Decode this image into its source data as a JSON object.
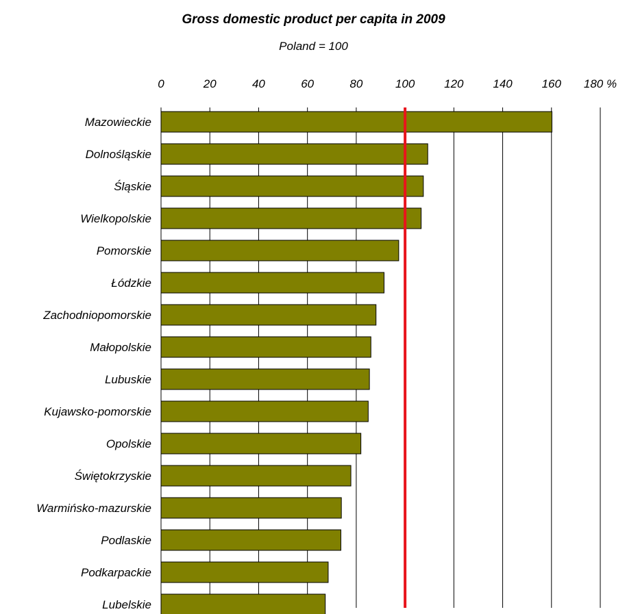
{
  "chart_data": {
    "type": "bar",
    "orientation": "horizontal",
    "title": "Gross domestic product per capita in 2009",
    "subtitle": "Poland = 100",
    "categories": [
      "Mazowieckie",
      "Dolnośląskie",
      "Śląskie",
      "Wielkopolskie",
      "Pomorskie",
      "Łódzkie",
      "Zachodniopomorskie",
      "Małopolskie",
      "Lubuskie",
      "Kujawsko-pomorskie",
      "Opolskie",
      "Świętokrzyskie",
      "Warmińsko-mazurskie",
      "Podlaskie",
      "Podkarpackie",
      "Lubelskie"
    ],
    "values": [
      160.2,
      109.3,
      107.5,
      106.6,
      97.4,
      91.4,
      88.1,
      86.0,
      85.4,
      84.9,
      81.9,
      77.8,
      73.9,
      73.7,
      68.5,
      67.3
    ],
    "xlim": [
      0,
      180
    ],
    "xticks": [
      "0",
      "20",
      "40",
      "60",
      "80",
      "100",
      "120",
      "140",
      "160",
      "180 %"
    ],
    "tick_values": [
      0,
      20,
      40,
      60,
      80,
      100,
      120,
      140,
      160,
      180
    ],
    "reference_line": 100,
    "grid": "vertical",
    "axis_position": "top",
    "colors": {
      "bar_fill": "#808000",
      "bar_stroke": "#000000",
      "reference_line": "#e8141c",
      "grid": "#000000"
    }
  }
}
